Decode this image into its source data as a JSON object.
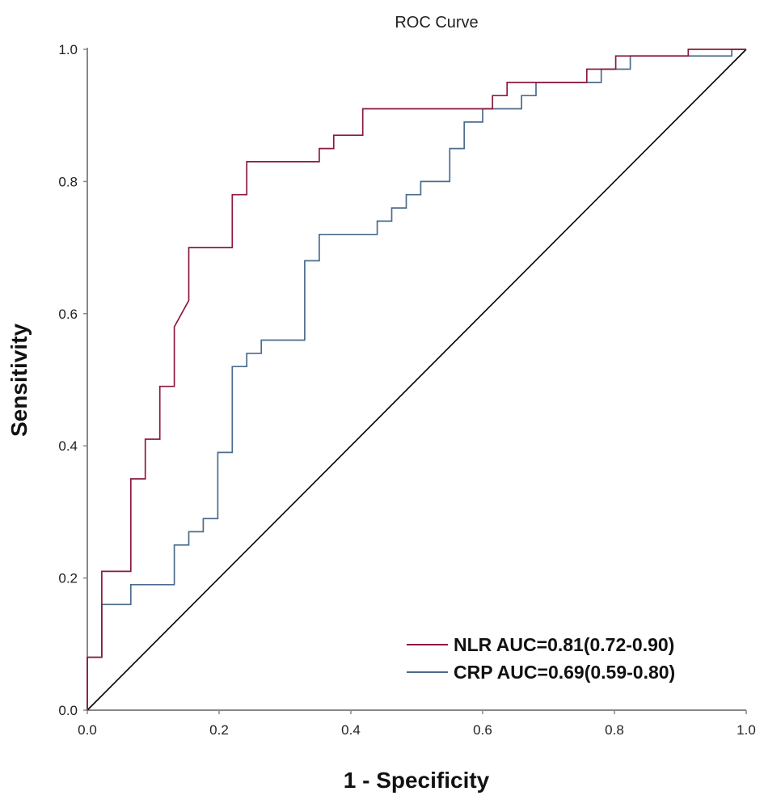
{
  "chart_data": {
    "type": "line",
    "title": "ROC Curve",
    "xlabel": "1 - Specificity",
    "ylabel": "Sensitivity",
    "xlim": [
      0,
      1
    ],
    "ylim": [
      0,
      1
    ],
    "x_ticks": [
      "0.0",
      "0.2",
      "0.4",
      "0.6",
      "0.8",
      "1.0"
    ],
    "y_ticks": [
      "0.0",
      "0.2",
      "0.4",
      "0.6",
      "0.8",
      "1.0"
    ],
    "grid": false,
    "legend_position": "bottom-right",
    "reference_line": {
      "name": "reference",
      "color": "#000000",
      "points": [
        [
          0,
          0
        ],
        [
          1,
          1
        ]
      ]
    },
    "series": [
      {
        "name": "NLR AUC=0.81(0.72-0.90)",
        "color": "#8b1a3c",
        "points": [
          [
            0,
            0
          ],
          [
            0,
            0.08
          ],
          [
            0.022,
            0.08
          ],
          [
            0.022,
            0.21
          ],
          [
            0.066,
            0.21
          ],
          [
            0.066,
            0.35
          ],
          [
            0.088,
            0.35
          ],
          [
            0.088,
            0.41
          ],
          [
            0.11,
            0.41
          ],
          [
            0.11,
            0.49
          ],
          [
            0.132,
            0.49
          ],
          [
            0.132,
            0.58
          ],
          [
            0.154,
            0.62
          ],
          [
            0.154,
            0.7
          ],
          [
            0.22,
            0.7
          ],
          [
            0.22,
            0.78
          ],
          [
            0.242,
            0.78
          ],
          [
            0.242,
            0.83
          ],
          [
            0.352,
            0.83
          ],
          [
            0.352,
            0.85
          ],
          [
            0.374,
            0.85
          ],
          [
            0.374,
            0.87
          ],
          [
            0.418,
            0.87
          ],
          [
            0.418,
            0.91
          ],
          [
            0.615,
            0.91
          ],
          [
            0.615,
            0.93
          ],
          [
            0.637,
            0.93
          ],
          [
            0.637,
            0.95
          ],
          [
            0.758,
            0.95
          ],
          [
            0.758,
            0.97
          ],
          [
            0.802,
            0.97
          ],
          [
            0.802,
            0.99
          ],
          [
            0.912,
            0.99
          ],
          [
            0.912,
            1.0
          ],
          [
            1.0,
            1.0
          ]
        ]
      },
      {
        "name": "CRP AUC=0.69(0.59-0.80)",
        "color": "#4b6b8c",
        "points": [
          [
            0,
            0
          ],
          [
            0,
            0.08
          ],
          [
            0.022,
            0.08
          ],
          [
            0.022,
            0.16
          ],
          [
            0.066,
            0.16
          ],
          [
            0.066,
            0.19
          ],
          [
            0.132,
            0.19
          ],
          [
            0.132,
            0.25
          ],
          [
            0.154,
            0.25
          ],
          [
            0.154,
            0.27
          ],
          [
            0.176,
            0.27
          ],
          [
            0.176,
            0.29
          ],
          [
            0.198,
            0.29
          ],
          [
            0.198,
            0.39
          ],
          [
            0.22,
            0.39
          ],
          [
            0.22,
            0.52
          ],
          [
            0.242,
            0.52
          ],
          [
            0.242,
            0.54
          ],
          [
            0.264,
            0.54
          ],
          [
            0.264,
            0.56
          ],
          [
            0.33,
            0.56
          ],
          [
            0.33,
            0.68
          ],
          [
            0.352,
            0.68
          ],
          [
            0.352,
            0.72
          ],
          [
            0.44,
            0.72
          ],
          [
            0.44,
            0.74
          ],
          [
            0.462,
            0.74
          ],
          [
            0.462,
            0.76
          ],
          [
            0.484,
            0.76
          ],
          [
            0.484,
            0.78
          ],
          [
            0.506,
            0.78
          ],
          [
            0.506,
            0.8
          ],
          [
            0.55,
            0.8
          ],
          [
            0.55,
            0.85
          ],
          [
            0.572,
            0.85
          ],
          [
            0.572,
            0.89
          ],
          [
            0.6,
            0.89
          ],
          [
            0.6,
            0.91
          ],
          [
            0.659,
            0.91
          ],
          [
            0.659,
            0.93
          ],
          [
            0.681,
            0.93
          ],
          [
            0.681,
            0.95
          ],
          [
            0.78,
            0.95
          ],
          [
            0.78,
            0.97
          ],
          [
            0.824,
            0.97
          ],
          [
            0.824,
            0.99
          ],
          [
            0.978,
            0.99
          ],
          [
            0.978,
            1.0
          ],
          [
            1.0,
            1.0
          ]
        ]
      }
    ]
  }
}
